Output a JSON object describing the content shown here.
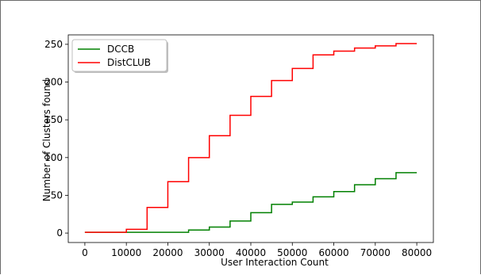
{
  "chart_data": {
    "type": "line",
    "step": "post",
    "xlabel": "User Interaction Count",
    "ylabel": "Number of Clusters found",
    "xlim": [
      -4000,
      84000
    ],
    "ylim": [
      -12.5,
      262.5
    ],
    "xticks": [
      0,
      10000,
      20000,
      30000,
      40000,
      50000,
      60000,
      70000,
      80000
    ],
    "yticks": [
      0,
      50,
      100,
      150,
      200,
      250
    ],
    "legend_position": "upper-left",
    "grid": false,
    "series": [
      {
        "name": "DCCB",
        "color": "#008000",
        "x": [
          0,
          5000,
          10000,
          15000,
          20000,
          25000,
          30000,
          35000,
          40000,
          45000,
          50000,
          55000,
          60000,
          65000,
          70000,
          75000,
          80000
        ],
        "y": [
          1,
          1,
          1,
          1,
          1,
          4,
          8,
          16,
          27,
          38,
          41,
          48,
          55,
          64,
          72,
          80,
          80
        ]
      },
      {
        "name": "DistCLUB",
        "color": "#ff0000",
        "x": [
          0,
          5000,
          10000,
          15000,
          20000,
          25000,
          30000,
          35000,
          40000,
          45000,
          50000,
          55000,
          60000,
          65000,
          70000,
          75000,
          80000
        ],
        "y": [
          1,
          1,
          5,
          34,
          68,
          100,
          129,
          156,
          181,
          202,
          218,
          236,
          241,
          245,
          248,
          251,
          251
        ]
      }
    ]
  }
}
